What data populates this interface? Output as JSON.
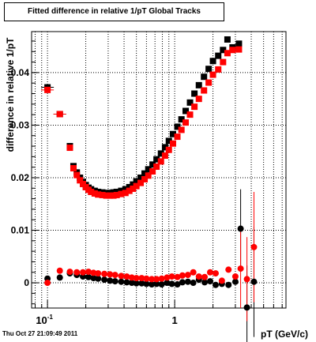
{
  "title": "Fitted difference in relative 1/pT  Global Tracks",
  "timestamp": "Thu Oct 27 21:09:49 2011",
  "colors": {
    "series_black": "#000000",
    "series_red": "#ff0000",
    "grid": "#000000"
  },
  "chart_data": {
    "type": "scatter",
    "title": "Fitted difference in relative 1/pT  Global Tracks",
    "xlabel": "pT (GeV/c)",
    "ylabel": "difference in relative 1/pT",
    "xscale": "log",
    "xlim": [
      0.075,
      7.5
    ],
    "ylim": [
      -0.0048,
      0.0478
    ],
    "grid": true,
    "legend": "none",
    "xticks": [
      {
        "value": 0.1,
        "base": "10",
        "exp": "-1"
      },
      {
        "value": 1,
        "base": "1",
        "exp": ""
      }
    ],
    "yticks": [
      {
        "value": 0,
        "label": "0"
      },
      {
        "value": 0.01,
        "label": "0.01"
      },
      {
        "value": 0.02,
        "label": "0.02"
      },
      {
        "value": 0.03,
        "label": "0.03"
      },
      {
        "value": 0.04,
        "label": "0.04"
      }
    ],
    "series": [
      {
        "marker": "square",
        "color": "#000000",
        "points": [
          [
            0.1,
            0.0372
          ],
          [
            0.125,
            0.0321
          ],
          [
            0.15,
            0.026
          ],
          [
            0.16,
            0.0222
          ],
          [
            0.17,
            0.021
          ],
          [
            0.18,
            0.02
          ],
          [
            0.19,
            0.0192
          ],
          [
            0.2,
            0.0186
          ],
          [
            0.21,
            0.0181
          ],
          [
            0.22,
            0.0178
          ],
          [
            0.235,
            0.0175
          ],
          [
            0.25,
            0.0173
          ],
          [
            0.27,
            0.0172
          ],
          [
            0.29,
            0.0171
          ],
          [
            0.31,
            0.0171
          ],
          [
            0.33,
            0.0172
          ],
          [
            0.35,
            0.0173
          ],
          [
            0.38,
            0.0175
          ],
          [
            0.41,
            0.0178
          ],
          [
            0.44,
            0.0182
          ],
          [
            0.47,
            0.0187
          ],
          [
            0.5,
            0.0193
          ],
          [
            0.54,
            0.02
          ],
          [
            0.58,
            0.0208
          ],
          [
            0.62,
            0.0216
          ],
          [
            0.67,
            0.0225
          ],
          [
            0.72,
            0.0235
          ],
          [
            0.78,
            0.0246
          ],
          [
            0.84,
            0.0258
          ],
          [
            0.9,
            0.027
          ],
          [
            0.97,
            0.0283
          ],
          [
            1.05,
            0.0297
          ],
          [
            1.13,
            0.0311
          ],
          [
            1.22,
            0.0327
          ],
          [
            1.32,
            0.0343
          ],
          [
            1.43,
            0.036
          ],
          [
            1.55,
            0.0376
          ],
          [
            1.7,
            0.0392
          ],
          [
            1.85,
            0.0407
          ],
          [
            2.0,
            0.0422
          ],
          [
            2.2,
            0.0432
          ],
          [
            2.4,
            0.0443
          ],
          [
            2.6,
            0.0463
          ],
          [
            2.85,
            0.0448
          ],
          [
            3.2,
            0.0455
          ]
        ]
      },
      {
        "marker": "square",
        "color": "#ff0000",
        "points": [
          [
            0.1,
            0.0367
          ],
          [
            0.125,
            0.0321
          ],
          [
            0.15,
            0.0257
          ],
          [
            0.16,
            0.0218
          ],
          [
            0.17,
            0.0205
          ],
          [
            0.18,
            0.0195
          ],
          [
            0.19,
            0.0188
          ],
          [
            0.2,
            0.0182
          ],
          [
            0.21,
            0.0177
          ],
          [
            0.22,
            0.0173
          ],
          [
            0.235,
            0.017
          ],
          [
            0.25,
            0.0168
          ],
          [
            0.27,
            0.0167
          ],
          [
            0.29,
            0.0166
          ],
          [
            0.31,
            0.0166
          ],
          [
            0.33,
            0.0166
          ],
          [
            0.35,
            0.0167
          ],
          [
            0.38,
            0.0169
          ],
          [
            0.41,
            0.0171
          ],
          [
            0.44,
            0.0175
          ],
          [
            0.47,
            0.0179
          ],
          [
            0.5,
            0.0184
          ],
          [
            0.54,
            0.019
          ],
          [
            0.58,
            0.0197
          ],
          [
            0.62,
            0.0204
          ],
          [
            0.67,
            0.0212
          ],
          [
            0.72,
            0.0221
          ],
          [
            0.78,
            0.0231
          ],
          [
            0.84,
            0.0242
          ],
          [
            0.9,
            0.0253
          ],
          [
            0.97,
            0.0265
          ],
          [
            1.05,
            0.0278
          ],
          [
            1.13,
            0.0291
          ],
          [
            1.22,
            0.0305
          ],
          [
            1.32,
            0.032
          ],
          [
            1.43,
            0.0335
          ],
          [
            1.55,
            0.035
          ],
          [
            1.7,
            0.0366
          ],
          [
            1.85,
            0.0381
          ],
          [
            2.0,
            0.0396
          ],
          [
            2.2,
            0.0406
          ],
          [
            2.4,
            0.042
          ],
          [
            2.6,
            0.0437
          ],
          [
            2.85,
            0.0443
          ],
          [
            3.2,
            0.0444
          ]
        ]
      },
      {
        "marker": "circle",
        "color": "#000000",
        "points": [
          [
            0.1,
            0.0008
          ],
          [
            0.125,
            0.001
          ],
          [
            0.15,
            0.0018
          ],
          [
            0.17,
            0.0015
          ],
          [
            0.19,
            0.0012
          ],
          [
            0.21,
            0.0011
          ],
          [
            0.23,
            0.0009
          ],
          [
            0.25,
            0.0008
          ],
          [
            0.28,
            0.0006
          ],
          [
            0.31,
            0.0004
          ],
          [
            0.34,
            0.0003
          ],
          [
            0.38,
            0.0002
          ],
          [
            0.42,
            0.0001
          ],
          [
            0.46,
            0.0
          ],
          [
            0.5,
            -0.0001
          ],
          [
            0.55,
            -0.0001
          ],
          [
            0.6,
            -0.0002
          ],
          [
            0.66,
            -0.0003
          ],
          [
            0.72,
            -0.0002
          ],
          [
            0.79,
            -0.0003
          ],
          [
            0.87,
            0.0
          ],
          [
            0.95,
            -0.0002
          ],
          [
            1.05,
            -0.0003
          ],
          [
            1.15,
            0.0001
          ],
          [
            1.27,
            0.0002
          ],
          [
            1.4,
            0.0
          ],
          [
            1.55,
            0.0006
          ],
          [
            1.72,
            0.0001
          ],
          [
            1.9,
            0.0003
          ],
          [
            2.1,
            -0.0004
          ],
          [
            2.35,
            -0.0002
          ],
          [
            2.65,
            -0.0004
          ],
          [
            3.0,
            0.0002
          ],
          [
            3.3,
            0.0103
          ],
          [
            3.7,
            -0.0047
          ],
          [
            4.2,
            0.0002
          ]
        ]
      },
      {
        "marker": "circle",
        "color": "#ff0000",
        "points": [
          [
            0.1,
            0.0
          ],
          [
            0.125,
            0.0023
          ],
          [
            0.15,
            0.0021
          ],
          [
            0.17,
            0.002
          ],
          [
            0.19,
            0.002
          ],
          [
            0.21,
            0.0021
          ],
          [
            0.23,
            0.0019
          ],
          [
            0.25,
            0.0018
          ],
          [
            0.28,
            0.0017
          ],
          [
            0.31,
            0.0016
          ],
          [
            0.34,
            0.0015
          ],
          [
            0.38,
            0.0013
          ],
          [
            0.42,
            0.0012
          ],
          [
            0.46,
            0.001
          ],
          [
            0.5,
            0.0009
          ],
          [
            0.55,
            0.0009
          ],
          [
            0.6,
            0.0008
          ],
          [
            0.66,
            0.0007
          ],
          [
            0.72,
            0.0007
          ],
          [
            0.79,
            0.0008
          ],
          [
            0.87,
            0.001
          ],
          [
            0.95,
            0.0012
          ],
          [
            1.05,
            0.0011
          ],
          [
            1.15,
            0.0014
          ],
          [
            1.27,
            0.0015
          ],
          [
            1.4,
            0.002
          ],
          [
            1.55,
            0.0012
          ],
          [
            1.72,
            0.0011
          ],
          [
            1.9,
            0.002
          ],
          [
            2.1,
            0.0018
          ],
          [
            2.35,
            0.0004
          ],
          [
            2.65,
            0.0025
          ],
          [
            3.0,
            0.0012
          ],
          [
            3.3,
            0.0027
          ],
          [
            3.7,
            0.0007
          ],
          [
            4.2,
            0.0068
          ]
        ]
      }
    ]
  }
}
